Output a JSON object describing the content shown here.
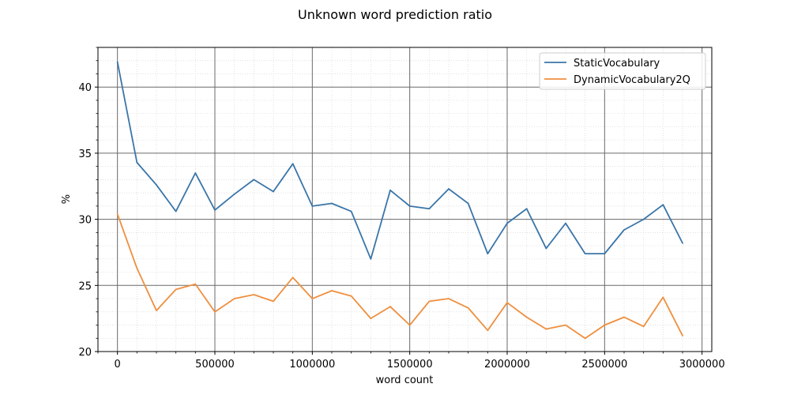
{
  "chart_data": {
    "type": "line",
    "title": "Unknown word prediction ratio",
    "xlabel": "word count",
    "ylabel": "%",
    "xlim": [
      -100000,
      3050000
    ],
    "ylim": [
      20,
      43
    ],
    "x_ticks": [
      0,
      500000,
      1000000,
      1500000,
      2000000,
      2500000,
      3000000
    ],
    "y_ticks": [
      20,
      25,
      30,
      35,
      40
    ],
    "grid": "major and minor",
    "legend_position": "top-right",
    "x": [
      0,
      100000,
      200000,
      300000,
      400000,
      500000,
      600000,
      700000,
      800000,
      900000,
      1000000,
      1100000,
      1200000,
      1300000,
      1400000,
      1500000,
      1600000,
      1700000,
      1800000,
      1900000,
      2000000,
      2100000,
      2200000,
      2300000,
      2400000,
      2500000,
      2600000,
      2700000,
      2800000,
      2900000
    ],
    "series": [
      {
        "name": "StaticVocabulary",
        "color": "#3a75a8",
        "values": [
          41.9,
          34.3,
          32.6,
          30.6,
          33.5,
          30.7,
          31.9,
          33.0,
          32.1,
          34.2,
          31.0,
          31.2,
          30.6,
          27.0,
          32.2,
          31.0,
          30.8,
          32.3,
          31.2,
          27.4,
          29.7,
          30.8,
          27.8,
          29.7,
          27.4,
          27.4,
          29.2,
          30.0,
          31.1,
          28.2
        ]
      },
      {
        "name": "DynamicVocabulary2Q",
        "color": "#ee8f3f",
        "values": [
          30.4,
          26.3,
          23.1,
          24.7,
          25.1,
          23.0,
          24.0,
          24.3,
          23.8,
          25.6,
          24.0,
          24.6,
          24.2,
          22.5,
          23.4,
          22.0,
          23.8,
          24.0,
          23.3,
          21.6,
          23.7,
          22.6,
          21.7,
          22.0,
          21.0,
          22.0,
          22.6,
          21.9,
          24.1,
          21.2
        ]
      }
    ]
  }
}
